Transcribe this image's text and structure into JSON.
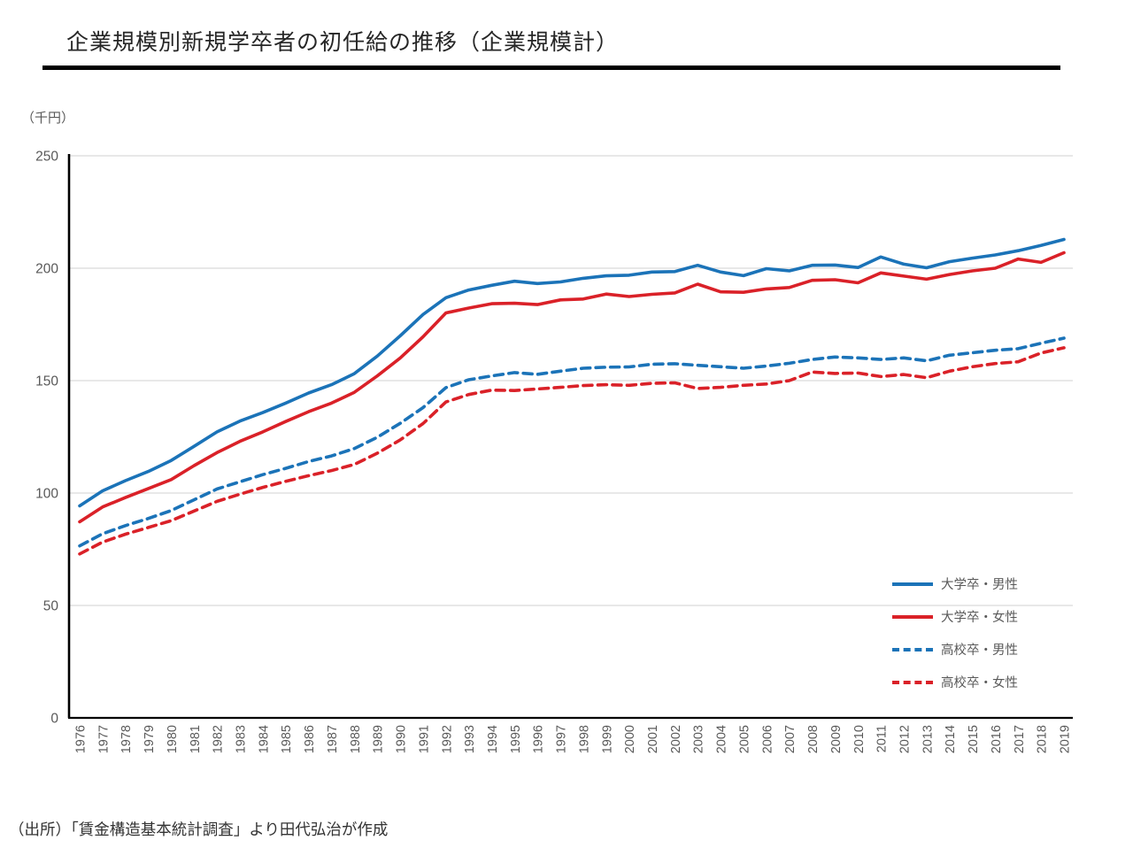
{
  "header": {
    "title": "企業規模別新規学卒者の初任給の推移（企業規模計）"
  },
  "axis": {
    "unit_label": "（千円）",
    "y_ticks": [
      0,
      50,
      100,
      150,
      200,
      250
    ],
    "grid_color": "#d9d9d9",
    "axis_color": "#000000",
    "tick_label_color": "#595959"
  },
  "colors": {
    "blue": "#1b73b8",
    "red": "#da2128"
  },
  "chart_data": {
    "type": "line",
    "title": "企業規模別新規学卒者の初任給の推移（企業規模計）",
    "ylabel": "（千円）",
    "ylim": [
      0,
      250
    ],
    "y_ticks": [
      0,
      50,
      100,
      150,
      200,
      250
    ],
    "grid": true,
    "legend_position": "inside-right",
    "x": [
      1976,
      1977,
      1978,
      1979,
      1980,
      1981,
      1982,
      1983,
      1984,
      1985,
      1986,
      1987,
      1988,
      1989,
      1990,
      1991,
      1992,
      1993,
      1994,
      1995,
      1996,
      1997,
      1998,
      1999,
      2000,
      2001,
      2002,
      2003,
      2004,
      2005,
      2006,
      2007,
      2008,
      2009,
      2010,
      2011,
      2012,
      2013,
      2014,
      2015,
      2016,
      2017,
      2018,
      2019
    ],
    "series": [
      {
        "name": "大学卒・男性",
        "color": "#1b73b8",
        "style": "solid",
        "values": [
          94.3,
          101.0,
          105.5,
          109.6,
          114.5,
          120.8,
          127.2,
          132.0,
          135.8,
          140.0,
          144.5,
          148.2,
          153.1,
          160.9,
          169.9,
          179.4,
          186.9,
          190.3,
          192.4,
          194.2,
          193.2,
          193.9,
          195.5,
          196.6,
          196.9,
          198.3,
          198.5,
          201.3,
          198.3,
          196.7,
          199.8,
          198.8,
          201.3,
          201.4,
          200.3,
          205.0,
          201.8,
          200.2,
          202.9,
          204.5,
          205.9,
          207.8,
          210.1,
          212.8
        ]
      },
      {
        "name": "大学卒・女性",
        "color": "#da2128",
        "style": "solid",
        "values": [
          87.2,
          93.8,
          98.0,
          102.0,
          106.0,
          112.2,
          118.0,
          123.0,
          127.2,
          131.8,
          136.2,
          140.0,
          144.8,
          152.1,
          160.0,
          169.5,
          180.1,
          182.3,
          184.2,
          184.4,
          183.8,
          185.9,
          186.3,
          188.5,
          187.4,
          188.4,
          189.0,
          192.9,
          189.5,
          189.3,
          190.8,
          191.4,
          194.6,
          194.9,
          193.5,
          197.9,
          196.5,
          195.1,
          197.2,
          198.8,
          200.0,
          204.1,
          202.6,
          206.9
        ]
      },
      {
        "name": "高校卒・男性",
        "color": "#1b73b8",
        "style": "dashed",
        "values": [
          76.5,
          81.9,
          85.5,
          88.7,
          92.2,
          97.0,
          101.8,
          105.0,
          108.2,
          111.0,
          114.0,
          116.5,
          119.8,
          124.8,
          131.0,
          138.0,
          146.9,
          150.4,
          152.1,
          153.6,
          152.8,
          154.2,
          155.5,
          156.0,
          156.1,
          157.3,
          157.5,
          156.8,
          156.2,
          155.5,
          156.5,
          157.7,
          159.4,
          160.5,
          160.1,
          159.4,
          160.1,
          158.8,
          161.3,
          162.4,
          163.5,
          164.2,
          166.6,
          168.9
        ]
      },
      {
        "name": "高校卒・女性",
        "color": "#da2128",
        "style": "dashed",
        "values": [
          72.9,
          78.2,
          81.7,
          84.7,
          87.7,
          92.0,
          96.3,
          99.5,
          102.5,
          105.2,
          107.7,
          110.0,
          112.7,
          117.7,
          123.6,
          130.9,
          140.5,
          143.8,
          145.8,
          145.6,
          146.3,
          147.0,
          147.8,
          148.2,
          147.9,
          148.8,
          149.0,
          146.5,
          147.0,
          147.9,
          148.5,
          150.0,
          153.8,
          153.2,
          153.4,
          151.8,
          152.7,
          151.3,
          154.2,
          156.2,
          157.6,
          158.4,
          162.3,
          164.6
        ]
      }
    ]
  },
  "footer": {
    "source": "（出所）「賃金構造基本統計調査」より田代弘治が作成"
  }
}
